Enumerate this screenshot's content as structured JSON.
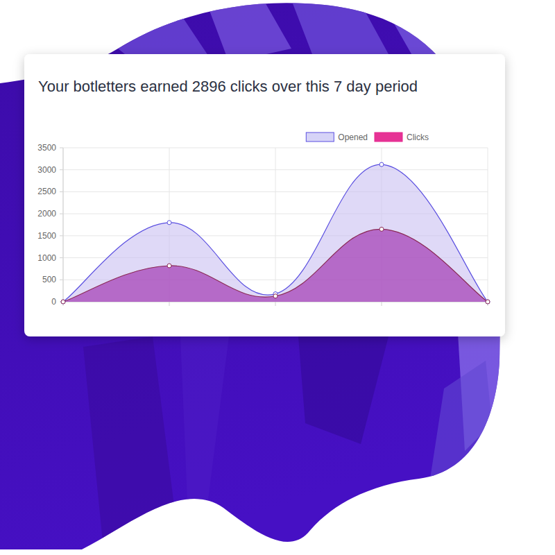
{
  "chart_data": {
    "type": "area",
    "title": "Your botletters earned 2896 clicks over this 7 day period",
    "categories": [
      null,
      null,
      null,
      null,
      null
    ],
    "series": [
      {
        "name": "Opened",
        "color": "#5a4fe0",
        "values": [
          0,
          1800,
          180,
          3120,
          0
        ]
      },
      {
        "name": "Clicks",
        "color": "#e5288f",
        "values": [
          0,
          820,
          130,
          1650,
          0
        ]
      }
    ],
    "ylim": [
      0,
      3500
    ],
    "yticks": [
      0,
      500,
      1000,
      1500,
      2000,
      2500,
      3000,
      3500
    ],
    "grid": true,
    "legend": "top-right",
    "tick_labels": "y",
    "marker": "circle"
  }
}
